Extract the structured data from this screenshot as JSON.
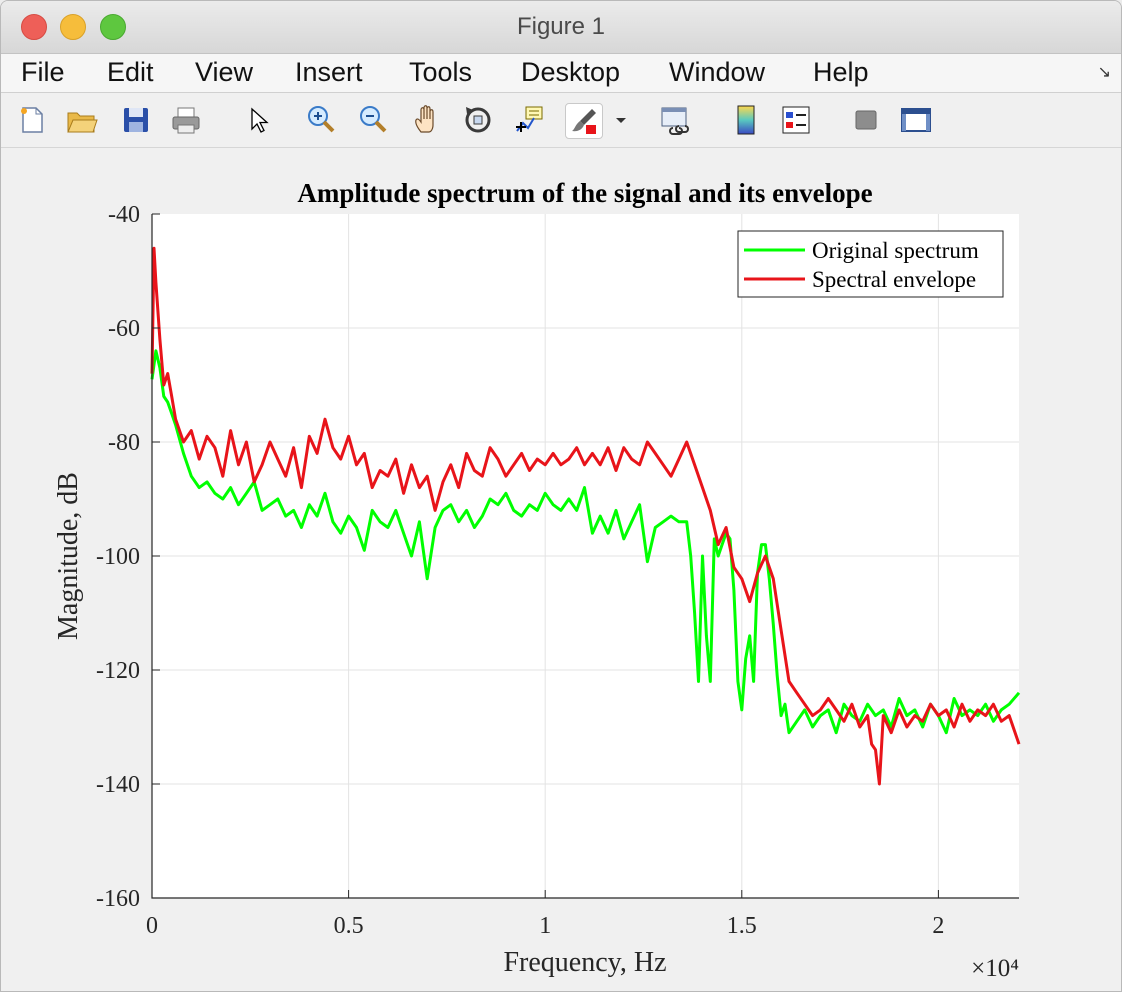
{
  "window": {
    "title": "Figure 1"
  },
  "menu": [
    "File",
    "Edit",
    "View",
    "Insert",
    "Tools",
    "Desktop",
    "Window",
    "Help"
  ],
  "toolbar": [
    "new-figure-icon",
    "open-icon",
    "save-icon",
    "print-icon",
    "pointer-icon",
    "zoom-in-icon",
    "zoom-out-icon",
    "pan-icon",
    "rotate-3d-icon",
    "data-cursor-icon",
    "brush-icon",
    "brush-dropdown-icon",
    "link-plot-icon",
    "colorbar-icon",
    "legend-icon",
    "hide-plot-tools-icon",
    "show-plot-tools-icon"
  ],
  "chart_data": {
    "type": "line",
    "title": "Amplitude spectrum of the signal and its envelope",
    "xlabel": "Frequency, Hz",
    "ylabel": "Magnitude, dB",
    "x_exponent_label": "×10⁴",
    "xlim": [
      0,
      22050
    ],
    "ylim": [
      -160,
      -40
    ],
    "xticks": [
      0,
      5000,
      10000,
      15000,
      20000
    ],
    "xtick_labels": [
      "0",
      "0.5",
      "1",
      "1.5",
      "2"
    ],
    "yticks": [
      -160,
      -140,
      -120,
      -100,
      -80,
      -60,
      -40
    ],
    "ytick_labels": [
      "-160",
      "-140",
      "-120",
      "-100",
      "-80",
      "-60",
      "-40"
    ],
    "grid": true,
    "legend_position": "top-right",
    "series": [
      {
        "name": "Original spectrum",
        "color": "#00ff00",
        "x": [
          0,
          100,
          200,
          300,
          400,
          500,
          600,
          800,
          1000,
          1200,
          1400,
          1600,
          1800,
          2000,
          2200,
          2400,
          2600,
          2800,
          3000,
          3200,
          3400,
          3600,
          3800,
          4000,
          4200,
          4400,
          4600,
          4800,
          5000,
          5200,
          5400,
          5600,
          5800,
          6000,
          6200,
          6400,
          6600,
          6800,
          7000,
          7200,
          7400,
          7600,
          7800,
          8000,
          8200,
          8400,
          8600,
          8800,
          9000,
          9200,
          9400,
          9600,
          9800,
          10000,
          10200,
          10400,
          10600,
          10800,
          11000,
          11200,
          11400,
          11600,
          11800,
          12000,
          12200,
          12400,
          12600,
          12800,
          13000,
          13200,
          13400,
          13600,
          13700,
          13800,
          13900,
          14000,
          14100,
          14200,
          14300,
          14400,
          14500,
          14600,
          14700,
          14800,
          14900,
          15000,
          15100,
          15200,
          15300,
          15400,
          15500,
          15600,
          15700,
          15800,
          15900,
          16000,
          16100,
          16200,
          16400,
          16600,
          16800,
          17000,
          17200,
          17400,
          17600,
          17800,
          18000,
          18200,
          18400,
          18600,
          18800,
          19000,
          19200,
          19400,
          19600,
          19800,
          20000,
          20200,
          20400,
          20600,
          20800,
          21000,
          21200,
          21400,
          21600,
          21800,
          22050
        ],
        "y": [
          -69,
          -64,
          -67,
          -72,
          -73,
          -75,
          -77,
          -82,
          -86,
          -88,
          -87,
          -89,
          -90,
          -88,
          -91,
          -89,
          -87,
          -92,
          -91,
          -90,
          -93,
          -92,
          -95,
          -91,
          -93,
          -89,
          -94,
          -96,
          -93,
          -95,
          -99,
          -92,
          -94,
          -95,
          -92,
          -96,
          -100,
          -94,
          -104,
          -95,
          -92,
          -91,
          -94,
          -92,
          -95,
          -93,
          -90,
          -91,
          -89,
          -92,
          -93,
          -91,
          -92,
          -89,
          -91,
          -92,
          -90,
          -92,
          -88,
          -96,
          -93,
          -96,
          -92,
          -97,
          -94,
          -91,
          -101,
          -95,
          -94,
          -93,
          -94,
          -94,
          -100,
          -110,
          -122,
          -100,
          -114,
          -122,
          -97,
          -100,
          -98,
          -96,
          -97,
          -106,
          -122,
          -127,
          -118,
          -114,
          -122,
          -103,
          -98,
          -98,
          -104,
          -112,
          -121,
          -128,
          -126,
          -131,
          -129,
          -127,
          -130,
          -128,
          -127,
          -131,
          -126,
          -128,
          -129,
          -126,
          -128,
          -127,
          -130,
          -125,
          -128,
          -127,
          -130,
          -126,
          -128,
          -131,
          -125,
          -128,
          -127,
          -128,
          -126,
          -129,
          -127,
          -126,
          -124
        ]
      },
      {
        "name": "Spectral envelope",
        "color": "#e8141a",
        "x": [
          0,
          50,
          100,
          200,
          300,
          400,
          500,
          600,
          800,
          1000,
          1200,
          1400,
          1600,
          1800,
          2000,
          2200,
          2400,
          2600,
          2800,
          3000,
          3200,
          3400,
          3600,
          3800,
          4000,
          4200,
          4400,
          4600,
          4800,
          5000,
          5200,
          5400,
          5600,
          5800,
          6000,
          6200,
          6400,
          6600,
          6800,
          7000,
          7200,
          7400,
          7600,
          7800,
          8000,
          8200,
          8400,
          8600,
          8800,
          9000,
          9200,
          9400,
          9600,
          9800,
          10000,
          10200,
          10400,
          10600,
          10800,
          11000,
          11200,
          11400,
          11600,
          11800,
          12000,
          12200,
          12400,
          12600,
          12800,
          13000,
          13200,
          13400,
          13600,
          13800,
          14000,
          14200,
          14400,
          14600,
          14800,
          15000,
          15200,
          15400,
          15600,
          15800,
          16000,
          16200,
          16400,
          16600,
          16800,
          17000,
          17200,
          17400,
          17600,
          17800,
          18000,
          18200,
          18300,
          18400,
          18500,
          18600,
          18800,
          19000,
          19200,
          19400,
          19600,
          19800,
          20000,
          20200,
          20400,
          20600,
          20800,
          21000,
          21200,
          21400,
          21600,
          21800,
          22050
        ],
        "y": [
          -68,
          -46,
          -52,
          -62,
          -70,
          -68,
          -72,
          -76,
          -80,
          -78,
          -83,
          -79,
          -81,
          -86,
          -78,
          -84,
          -80,
          -87,
          -84,
          -80,
          -83,
          -86,
          -81,
          -88,
          -79,
          -82,
          -76,
          -81,
          -83,
          -79,
          -84,
          -82,
          -88,
          -85,
          -86,
          -83,
          -89,
          -84,
          -88,
          -86,
          -92,
          -87,
          -84,
          -88,
          -82,
          -85,
          -86,
          -81,
          -83,
          -86,
          -84,
          -82,
          -85,
          -83,
          -84,
          -82,
          -84,
          -83,
          -81,
          -84,
          -82,
          -84,
          -81,
          -85,
          -81,
          -83,
          -84,
          -80,
          -82,
          -84,
          -86,
          -83,
          -80,
          -84,
          -88,
          -92,
          -98,
          -95,
          -102,
          -104,
          -108,
          -103,
          -100,
          -104,
          -113,
          -122,
          -124,
          -126,
          -128,
          -127,
          -125,
          -127,
          -129,
          -126,
          -130,
          -128,
          -133,
          -134,
          -140,
          -128,
          -131,
          -127,
          -130,
          -128,
          -129,
          -126,
          -128,
          -127,
          -130,
          -126,
          -129,
          -127,
          -128,
          -126,
          -129,
          -128,
          -133
        ]
      }
    ]
  }
}
